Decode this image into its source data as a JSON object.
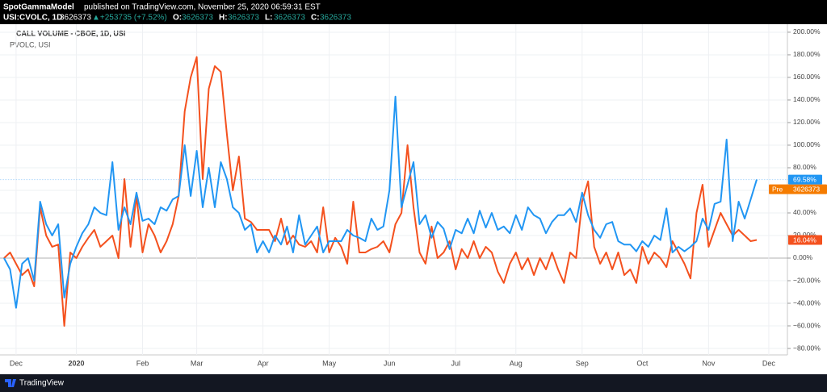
{
  "header": {
    "author": "SpotGammaModel",
    "published": "published on TradingView.com, November 25, 2020 06:59:31 EST",
    "symbol": "USI:CVOLC, 1D",
    "last": "3626373",
    "change": "▲+253735 (+7.52%)",
    "ohlc": [
      {
        "key": "O:",
        "value": "3626373"
      },
      {
        "key": "H:",
        "value": "3626373"
      },
      {
        "key": "L:",
        "value": "3626373"
      },
      {
        "key": "C:",
        "value": "3626373"
      }
    ]
  },
  "chart_data": {
    "type": "line",
    "price_marker": {
      "label": "Pre",
      "value": "3626373"
    },
    "categories": [
      null,
      null,
      "Dec",
      null,
      null,
      null,
      null,
      null,
      null,
      null,
      null,
      null,
      "2020",
      null,
      null,
      null,
      null,
      null,
      null,
      null,
      null,
      null,
      null,
      "Feb",
      null,
      null,
      null,
      null,
      null,
      null,
      null,
      null,
      "Mar",
      null,
      null,
      null,
      null,
      null,
      null,
      null,
      null,
      null,
      null,
      "Apr",
      null,
      null,
      null,
      null,
      null,
      null,
      null,
      null,
      null,
      null,
      "May",
      null,
      null,
      null,
      null,
      null,
      null,
      null,
      null,
      null,
      "Jun",
      null,
      null,
      null,
      null,
      null,
      null,
      null,
      null,
      null,
      null,
      "Jul",
      null,
      null,
      null,
      null,
      null,
      null,
      null,
      null,
      null,
      "Aug",
      null,
      null,
      null,
      null,
      null,
      null,
      null,
      null,
      null,
      null,
      "Sep",
      null,
      null,
      null,
      null,
      null,
      null,
      null,
      null,
      null,
      "Oct",
      null,
      null,
      null,
      null,
      null,
      null,
      null,
      null,
      null,
      null,
      "Nov",
      null,
      null,
      null,
      null,
      null,
      null,
      null,
      null,
      null,
      "Dec",
      null,
      null
    ],
    "series": [
      {
        "name": "CALL VOLUME - CBOE, 1D, USI",
        "color": "#2196f3",
        "last_label": "69.58%",
        "values": [
          0,
          -10,
          -44,
          -5,
          0,
          -20,
          50,
          30,
          20,
          30,
          -35,
          -5,
          10,
          22,
          30,
          45,
          40,
          38,
          85,
          25,
          45,
          30,
          58,
          33,
          35,
          30,
          45,
          42,
          52,
          55,
          100,
          55,
          95,
          45,
          80,
          45,
          85,
          70,
          45,
          40,
          25,
          30,
          5,
          15,
          5,
          20,
          12,
          28,
          5,
          38,
          12,
          20,
          28,
          5,
          15,
          15,
          15,
          25,
          20,
          18,
          15,
          35,
          25,
          28,
          60,
          143,
          45,
          65,
          85,
          30,
          38,
          18,
          32,
          26,
          8,
          25,
          22,
          35,
          22,
          42,
          27,
          40,
          25,
          28,
          22,
          38,
          25,
          45,
          38,
          35,
          22,
          32,
          38,
          38,
          44,
          32,
          58,
          38,
          25,
          18,
          30,
          32,
          15,
          12,
          12,
          6,
          15,
          10,
          20,
          16,
          44,
          5,
          10,
          6,
          10,
          15,
          35,
          25,
          48,
          50,
          105,
          15,
          50,
          35,
          52,
          69.58,
          null,
          null,
          null,
          null
        ]
      },
      {
        "name": "PVOLC, USI",
        "color": "#f4511e",
        "last_label": "16.04%",
        "values": [
          0,
          5,
          -5,
          -15,
          -10,
          -25,
          45,
          20,
          10,
          12,
          -60,
          5,
          0,
          10,
          18,
          25,
          10,
          15,
          20,
          0,
          70,
          10,
          55,
          5,
          30,
          20,
          5,
          15,
          30,
          55,
          130,
          160,
          178,
          70,
          150,
          170,
          165,
          110,
          60,
          90,
          35,
          32,
          25,
          25,
          25,
          15,
          35,
          12,
          20,
          12,
          10,
          15,
          5,
          45,
          5,
          18,
          10,
          -5,
          50,
          5,
          5,
          8,
          10,
          15,
          5,
          30,
          40,
          100,
          45,
          5,
          -5,
          28,
          0,
          5,
          15,
          -10,
          8,
          0,
          15,
          0,
          10,
          5,
          -12,
          -22,
          -5,
          5,
          -10,
          0,
          -15,
          0,
          -10,
          5,
          -10,
          -22,
          5,
          0,
          50,
          68,
          10,
          -5,
          5,
          -10,
          5,
          -15,
          -10,
          -22,
          10,
          -5,
          5,
          0,
          -8,
          15,
          5,
          -5,
          -18,
          40,
          65,
          10,
          25,
          40,
          30,
          20,
          25,
          20,
          15,
          16.04,
          null,
          null,
          null,
          null
        ]
      }
    ],
    "ylim": [
      -85.7,
      207.1
    ],
    "yticks": [
      {
        "value": 200,
        "label": "200.00%"
      },
      {
        "value": 180,
        "label": "180.00%"
      },
      {
        "value": 160,
        "label": "160.00%"
      },
      {
        "value": 140,
        "label": "140.00%"
      },
      {
        "value": 120,
        "label": "120.00%"
      },
      {
        "value": 100,
        "label": "100.00%"
      },
      {
        "value": 80,
        "label": "80.00%"
      },
      {
        "value": 60,
        "label": "60.00%"
      },
      {
        "value": 40,
        "label": "40.00%"
      },
      {
        "value": 20,
        "label": "20.00%"
      },
      {
        "value": 0,
        "label": "0.00%"
      },
      {
        "value": -20,
        "label": "−20.00%"
      },
      {
        "value": -40,
        "label": "−40.00%"
      },
      {
        "value": -60,
        "label": "−60.00%"
      },
      {
        "value": -80,
        "label": "−80.00%"
      }
    ],
    "grid": true
  },
  "footer": {
    "brand": "TradingView"
  }
}
